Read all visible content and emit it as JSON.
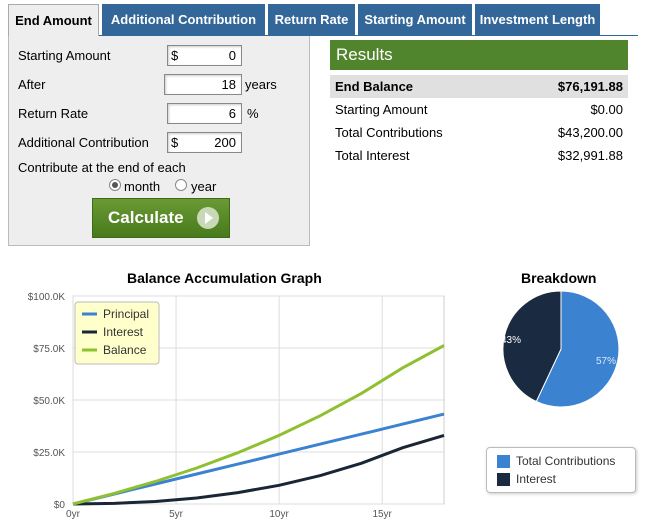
{
  "tabs": [
    {
      "label": "End Amount",
      "active": true
    },
    {
      "label": "Additional Contribution",
      "active": false
    },
    {
      "label": "Return Rate",
      "active": false
    },
    {
      "label": "Starting Amount",
      "active": false
    },
    {
      "label": "Investment Length",
      "active": false
    }
  ],
  "form": {
    "starting_amount": {
      "label": "Starting Amount",
      "prefix": "$",
      "value": "0"
    },
    "after": {
      "label": "After",
      "value": "18",
      "unit": "years"
    },
    "return_rate": {
      "label": "Return Rate",
      "value": "6",
      "unit": "%"
    },
    "additional": {
      "label": "Additional Contribution",
      "prefix": "$",
      "value": "200"
    },
    "contribute_label": "Contribute at the end of each",
    "options": [
      {
        "label": "month",
        "selected": true
      },
      {
        "label": "year",
        "selected": false
      }
    ],
    "calculate_label": "Calculate"
  },
  "results": {
    "title": "Results",
    "rows": [
      {
        "label": "End Balance",
        "value": "$76,191.88"
      },
      {
        "label": "Starting Amount",
        "value": "$0.00"
      },
      {
        "label": "Total Contributions",
        "value": "$43,200.00"
      },
      {
        "label": "Total Interest",
        "value": "$32,991.88"
      }
    ]
  },
  "colors": {
    "tab_bg": "#336699",
    "principal": "#3b82d1",
    "interest": "#1a2535",
    "balance": "#8fc031",
    "pie_contrib": "#3b82d1",
    "pie_interest": "#1a2a40",
    "results_header": "#51852d"
  },
  "chart_data": [
    {
      "type": "line",
      "title": "Balance Accumulation Graph",
      "xlabel": "",
      "ylabel": "",
      "x_ticks": [
        "0yr",
        "5yr",
        "10yr",
        "15yr"
      ],
      "y_ticks": [
        "$0",
        "$25.0K",
        "$50.0K",
        "$75.0K",
        "$100.0K"
      ],
      "xlim": [
        0,
        18
      ],
      "ylim": [
        0,
        100000
      ],
      "legend_position": "top-left",
      "x": [
        0,
        2,
        4,
        6,
        8,
        10,
        12,
        14,
        16,
        18
      ],
      "series": [
        {
          "name": "Principal",
          "values": [
            0,
            4800,
            9600,
            14400,
            19200,
            24000,
            28800,
            33600,
            38400,
            43200
          ]
        },
        {
          "name": "Interest",
          "values": [
            0,
            290,
            1220,
            2900,
            5460,
            8980,
            13650,
            19620,
            27090,
            32990
          ]
        },
        {
          "name": "Balance",
          "values": [
            0,
            5090,
            10820,
            17300,
            24660,
            32980,
            42450,
            53220,
            65490,
            76190
          ]
        }
      ]
    },
    {
      "type": "pie",
      "title": "Breakdown",
      "slices": [
        {
          "name": "Total Contributions",
          "value": 57,
          "label": "57%"
        },
        {
          "name": "Interest",
          "value": 43,
          "label": "43%"
        }
      ]
    }
  ]
}
